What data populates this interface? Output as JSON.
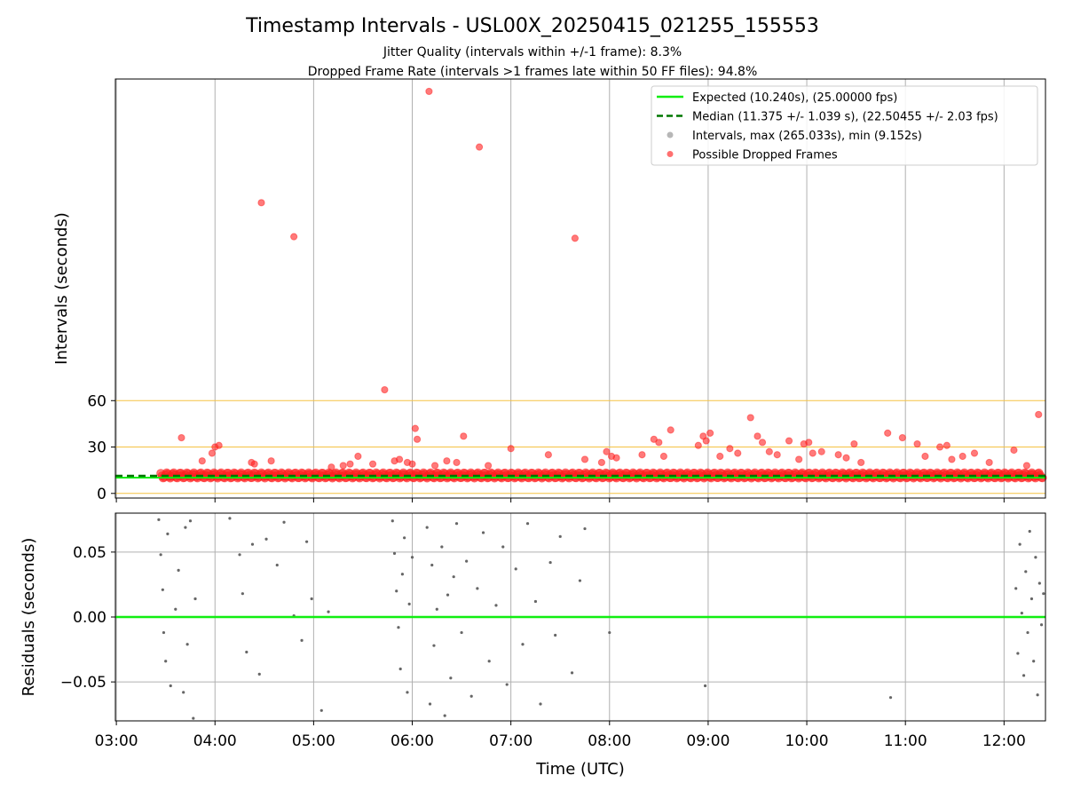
{
  "figure": {
    "title": "Timestamp Intervals - USL00X_20250415_021255_155553",
    "subtitle_1": "Jitter Quality (intervals within +/-1 frame): 8.3%",
    "subtitle_2": "Dropped Frame Rate (intervals >1 frames late within 50 FF files): 94.8%"
  },
  "chart_data": [
    {
      "type": "scatter",
      "panel": "top",
      "ylabel": "Intervals (seconds)",
      "xlabel": "",
      "x_range_hours": [
        2.99,
        12.42
      ],
      "ylim": [
        -3,
        268
      ],
      "y_ticks": [
        0,
        30,
        60
      ],
      "y_tick_labels": [
        "0",
        "30",
        "60"
      ],
      "x_ticks": [
        3,
        4,
        5,
        6,
        7,
        8,
        9,
        10,
        11,
        12
      ],
      "grid": "vertical",
      "reference_lines": [
        0,
        30,
        60
      ],
      "reference_color": "#f5c242",
      "legend_position": "top-right",
      "legend": [
        {
          "label": "Expected (10.240s), (25.00000 fps)",
          "kind": "line",
          "color": "#11ee11"
        },
        {
          "label": "Median (11.375 +/- 1.039 s), (22.50455 +/- 2.03 fps)",
          "kind": "dashed",
          "color": "#007700"
        },
        {
          "label": "Intervals, max (265.033s), min (9.152s)",
          "kind": "dot",
          "color": "#999999"
        },
        {
          "label": "Possible Dropped Frames",
          "kind": "dot",
          "color": "#ff3333"
        }
      ],
      "expected_value": 10.24,
      "median_value": 11.375,
      "series": [
        {
          "name": "Possible Dropped Frames",
          "color": "#ff2222",
          "points": [
            [
              3.66,
              36
            ],
            [
              3.87,
              21
            ],
            [
              3.97,
              26
            ],
            [
              4.0,
              30
            ],
            [
              4.04,
              31
            ],
            [
              4.37,
              20
            ],
            [
              4.4,
              19
            ],
            [
              4.47,
              188
            ],
            [
              4.57,
              21
            ],
            [
              4.8,
              166
            ],
            [
              5.18,
              17
            ],
            [
              5.3,
              18
            ],
            [
              5.37,
              19
            ],
            [
              5.45,
              24
            ],
            [
              5.6,
              19
            ],
            [
              5.72,
              67
            ],
            [
              5.82,
              21
            ],
            [
              5.87,
              22
            ],
            [
              5.95,
              20
            ],
            [
              6.0,
              19
            ],
            [
              6.03,
              42
            ],
            [
              6.05,
              35
            ],
            [
              6.17,
              260
            ],
            [
              6.23,
              18
            ],
            [
              6.35,
              21
            ],
            [
              6.45,
              20
            ],
            [
              6.52,
              37
            ],
            [
              6.68,
              224
            ],
            [
              6.77,
              18
            ],
            [
              7.0,
              29
            ],
            [
              7.38,
              25
            ],
            [
              7.65,
              165
            ],
            [
              7.75,
              22
            ],
            [
              7.92,
              20
            ],
            [
              7.97,
              27
            ],
            [
              8.02,
              24
            ],
            [
              8.07,
              23
            ],
            [
              8.33,
              25
            ],
            [
              8.45,
              35
            ],
            [
              8.5,
              33
            ],
            [
              8.55,
              24
            ],
            [
              8.62,
              41
            ],
            [
              8.9,
              31
            ],
            [
              8.95,
              37
            ],
            [
              8.98,
              34
            ],
            [
              9.02,
              39
            ],
            [
              9.12,
              24
            ],
            [
              9.22,
              29
            ],
            [
              9.3,
              26
            ],
            [
              9.43,
              49
            ],
            [
              9.5,
              37
            ],
            [
              9.55,
              33
            ],
            [
              9.62,
              27
            ],
            [
              9.7,
              25
            ],
            [
              9.82,
              34
            ],
            [
              9.92,
              22
            ],
            [
              9.97,
              32
            ],
            [
              10.02,
              33
            ],
            [
              10.06,
              26
            ],
            [
              10.15,
              27
            ],
            [
              10.32,
              25
            ],
            [
              10.4,
              23
            ],
            [
              10.48,
              32
            ],
            [
              10.55,
              20
            ],
            [
              10.82,
              39
            ],
            [
              10.97,
              36
            ],
            [
              11.12,
              32
            ],
            [
              11.2,
              24
            ],
            [
              11.35,
              30
            ],
            [
              11.42,
              31
            ],
            [
              11.47,
              22
            ],
            [
              11.58,
              24
            ],
            [
              11.7,
              26
            ],
            [
              11.85,
              20
            ],
            [
              12.1,
              28
            ],
            [
              12.23,
              18
            ],
            [
              12.35,
              51
            ]
          ]
        }
      ]
    },
    {
      "type": "scatter",
      "panel": "bottom",
      "ylabel": "Residuals (seconds)",
      "xlabel": "Time (UTC)",
      "x_range_hours": [
        2.99,
        12.42
      ],
      "ylim": [
        -0.08,
        0.08
      ],
      "y_ticks": [
        -0.05,
        0.0,
        0.05
      ],
      "y_tick_labels": [
        "−0.05",
        "0.00",
        "0.05"
      ],
      "x_ticks": [
        3,
        4,
        5,
        6,
        7,
        8,
        9,
        10,
        11,
        12
      ],
      "x_tick_labels": [
        "03:00",
        "04:00",
        "05:00",
        "06:00",
        "07:00",
        "08:00",
        "09:00",
        "10:00",
        "11:00",
        "12:00"
      ],
      "grid": "both",
      "zero_line_color": "#11ee11",
      "series": [
        {
          "name": "Residuals",
          "color": "#666666",
          "points": [
            [
              3.43,
              0.075
            ],
            [
              3.45,
              0.048
            ],
            [
              3.47,
              0.021
            ],
            [
              3.48,
              -0.012
            ],
            [
              3.5,
              -0.034
            ],
            [
              3.52,
              0.064
            ],
            [
              3.55,
              -0.053
            ],
            [
              3.6,
              0.006
            ],
            [
              3.63,
              0.036
            ],
            [
              3.68,
              -0.058
            ],
            [
              3.7,
              0.069
            ],
            [
              3.72,
              -0.021
            ],
            [
              3.75,
              0.074
            ],
            [
              3.78,
              -0.078
            ],
            [
              3.8,
              0.014
            ],
            [
              4.15,
              0.076
            ],
            [
              4.25,
              0.048
            ],
            [
              4.28,
              0.018
            ],
            [
              4.32,
              -0.027
            ],
            [
              4.38,
              0.056
            ],
            [
              4.45,
              -0.044
            ],
            [
              4.52,
              0.06
            ],
            [
              4.63,
              0.04
            ],
            [
              4.7,
              0.073
            ],
            [
              4.8,
              0.001
            ],
            [
              4.88,
              -0.018
            ],
            [
              4.93,
              0.058
            ],
            [
              4.98,
              0.014
            ],
            [
              5.08,
              -0.072
            ],
            [
              5.15,
              0.004
            ],
            [
              5.8,
              0.074
            ],
            [
              5.82,
              0.049
            ],
            [
              5.84,
              0.02
            ],
            [
              5.86,
              -0.008
            ],
            [
              5.88,
              -0.04
            ],
            [
              5.9,
              0.033
            ],
            [
              5.92,
              0.061
            ],
            [
              5.95,
              -0.058
            ],
            [
              5.97,
              0.01
            ],
            [
              6.0,
              0.046
            ],
            [
              6.15,
              0.069
            ],
            [
              6.18,
              -0.067
            ],
            [
              6.2,
              0.04
            ],
            [
              6.22,
              -0.022
            ],
            [
              6.25,
              0.006
            ],
            [
              6.3,
              0.054
            ],
            [
              6.33,
              -0.076
            ],
            [
              6.36,
              0.017
            ],
            [
              6.39,
              -0.047
            ],
            [
              6.42,
              0.031
            ],
            [
              6.45,
              0.072
            ],
            [
              6.5,
              -0.012
            ],
            [
              6.55,
              0.043
            ],
            [
              6.6,
              -0.061
            ],
            [
              6.66,
              0.022
            ],
            [
              6.72,
              0.065
            ],
            [
              6.78,
              -0.034
            ],
            [
              6.85,
              0.009
            ],
            [
              6.92,
              0.054
            ],
            [
              6.96,
              -0.052
            ],
            [
              7.05,
              0.037
            ],
            [
              7.12,
              -0.021
            ],
            [
              7.17,
              0.072
            ],
            [
              7.25,
              0.012
            ],
            [
              7.3,
              -0.067
            ],
            [
              7.4,
              0.042
            ],
            [
              7.45,
              -0.014
            ],
            [
              7.5,
              0.062
            ],
            [
              7.62,
              -0.043
            ],
            [
              7.7,
              0.028
            ],
            [
              7.75,
              0.068
            ],
            [
              8.0,
              -0.012
            ],
            [
              8.97,
              -0.053
            ],
            [
              10.85,
              -0.062
            ],
            [
              12.12,
              0.022
            ],
            [
              12.14,
              -0.028
            ],
            [
              12.16,
              0.056
            ],
            [
              12.18,
              0.003
            ],
            [
              12.2,
              -0.045
            ],
            [
              12.22,
              0.035
            ],
            [
              12.24,
              -0.012
            ],
            [
              12.26,
              0.066
            ],
            [
              12.28,
              0.014
            ],
            [
              12.3,
              -0.034
            ],
            [
              12.32,
              0.046
            ],
            [
              12.34,
              -0.06
            ],
            [
              12.36,
              0.026
            ],
            [
              12.38,
              -0.006
            ],
            [
              12.4,
              0.018
            ]
          ]
        }
      ]
    }
  ]
}
